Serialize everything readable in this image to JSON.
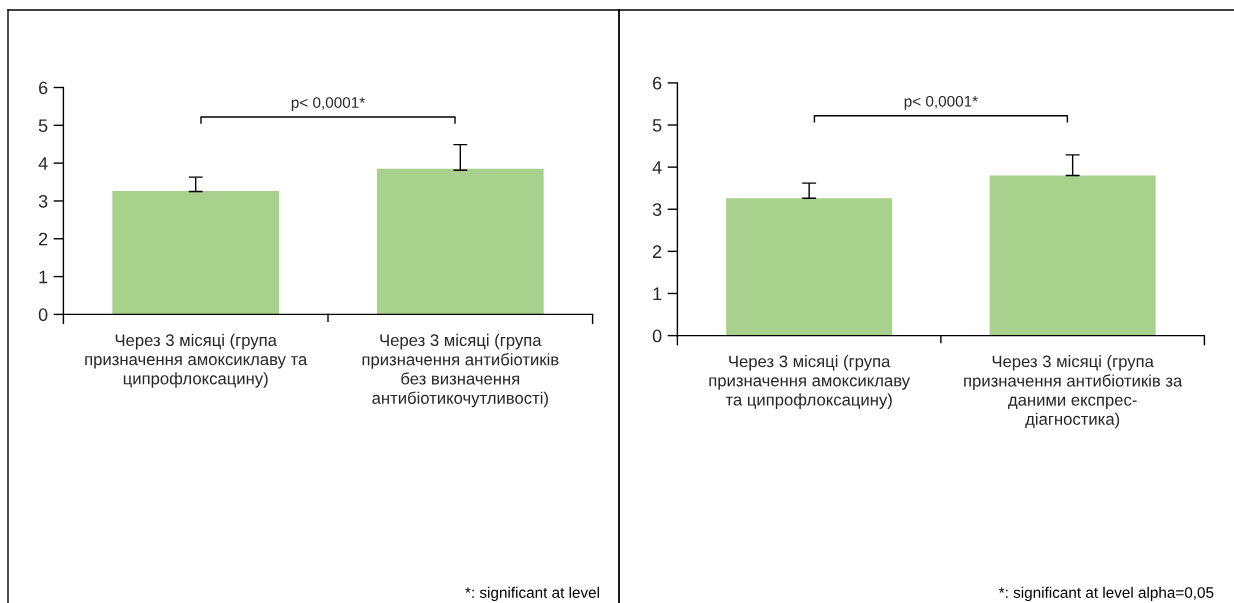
{
  "chart_data": [
    {
      "type": "bar",
      "categories": [
        "Через 3 місяці (група\nпризначення амоксиклаву та\nципрофлоксацину)",
        "Через 3 місяці (група\nпризначення антибіотиків\nбез визначення\nантибіотикочутливості)"
      ],
      "values": [
        3.26,
        3.85
      ],
      "color": "#a9d18e",
      "errors": [
        [
          3.25,
          3.63
        ],
        [
          3.81,
          4.49
        ]
      ],
      "ylim": [
        0,
        6
      ],
      "yticks": [
        0,
        1,
        2,
        3,
        4,
        5,
        6
      ],
      "grid": false,
      "annotations": [
        "p< 0,0001*",
        "*: significant at level"
      ]
    },
    {
      "type": "bar",
      "categories": [
        "Через 3 місяці (група\nпризначення амоксиклаву\nта ципрофлоксацину)",
        "Через 3 місяці (група\nпризначення антибіотиків за\nданими експрес-\nдіагностика)"
      ],
      "values": [
        3.26,
        3.8
      ],
      "color": "#a9d18e",
      "errors": [
        [
          3.26,
          3.62
        ],
        [
          3.8,
          4.29
        ]
      ],
      "ylim": [
        0,
        6
      ],
      "yticks": [
        0,
        1,
        2,
        3,
        4,
        5,
        6
      ],
      "grid": false,
      "annotations": [
        "p< 0,0001*",
        "*: significant at level alpha=0,05"
      ]
    }
  ]
}
